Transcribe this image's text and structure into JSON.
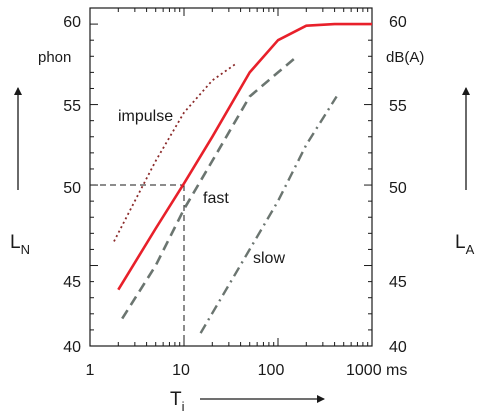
{
  "chart_data": {
    "type": "line",
    "title": "",
    "x_axis": {
      "scale": "log",
      "range": [
        1,
        1000
      ],
      "ticks": [
        1,
        10,
        100,
        1000
      ],
      "tick_labels": [
        "1",
        "10",
        "100",
        "1000 ms"
      ],
      "label": "T",
      "label_sub": "i"
    },
    "y_left": {
      "range": [
        40,
        61
      ],
      "ticks": [
        40,
        45,
        50,
        55,
        60
      ],
      "tick_labels": [
        "40",
        "45",
        "50",
        "55",
        "60"
      ],
      "unit": "phon",
      "label": "L",
      "label_sub": "N"
    },
    "y_right": {
      "range": [
        40,
        61
      ],
      "ticks": [
        40,
        45,
        50,
        55,
        60
      ],
      "tick_labels": [
        "40",
        "45",
        "50",
        "55",
        "60"
      ],
      "unit": "dB(A)",
      "label": "L",
      "label_sub": "A"
    },
    "grid": false,
    "series": [
      {
        "label": "",
        "color": "#e8202a",
        "style": "solid",
        "points": [
          [
            2,
            43.5
          ],
          [
            5,
            47.3
          ],
          [
            10,
            50.1
          ],
          [
            20,
            53
          ],
          [
            50,
            57
          ],
          [
            100,
            59
          ],
          [
            200,
            59.9
          ],
          [
            400,
            60
          ],
          [
            1000,
            60
          ]
        ]
      },
      {
        "label": "impulse",
        "color": "#8b2a2a",
        "style": "dotted",
        "points": [
          [
            1.8,
            46.5
          ],
          [
            3,
            49
          ],
          [
            5,
            51.5
          ],
          [
            10,
            54.5
          ],
          [
            20,
            56.5
          ],
          [
            35,
            57.5
          ]
        ]
      },
      {
        "label": "fast",
        "color": "#6b7570",
        "style": "dashed",
        "points": [
          [
            2.2,
            41.7
          ],
          [
            5,
            45
          ],
          [
            10,
            48.5
          ],
          [
            20,
            51.5
          ],
          [
            50,
            55.5
          ],
          [
            100,
            57
          ],
          [
            160,
            58
          ]
        ]
      },
      {
        "label": "slow",
        "color": "#6b7570",
        "style": "dashdot",
        "points": [
          [
            15,
            40.8
          ],
          [
            25,
            43
          ],
          [
            50,
            46
          ],
          [
            100,
            49
          ],
          [
            200,
            52.5
          ],
          [
            420,
            55.5
          ]
        ]
      }
    ],
    "reference_point": {
      "x": 10,
      "y": 50
    }
  }
}
